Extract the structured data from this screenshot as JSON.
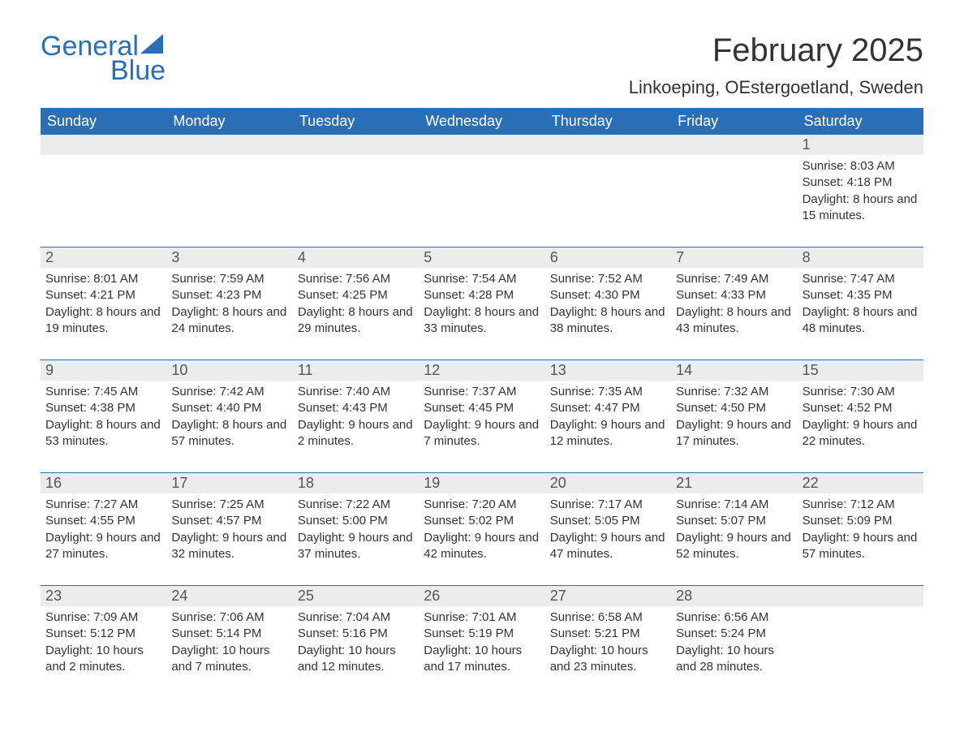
{
  "logo": {
    "word1": "General",
    "word2": "Blue",
    "color": "#2a6fb5"
  },
  "title": "February 2025",
  "location": "Linkoeping, OEstergoetland, Sweden",
  "weekdays": [
    "Sunday",
    "Monday",
    "Tuesday",
    "Wednesday",
    "Thursday",
    "Friday",
    "Saturday"
  ],
  "header_bg": "#2a6fb5",
  "header_fg": "#ffffff",
  "daynum_bg": "#ececec",
  "rule_color": "#2a6fb5",
  "text_color": "#333333",
  "background_color": "#ffffff",
  "font_family": "Arial",
  "title_fontsize": 40,
  "location_fontsize": 22,
  "weekday_fontsize": 18,
  "daynum_fontsize": 18,
  "detail_fontsize": 15,
  "weeks": [
    [
      null,
      null,
      null,
      null,
      null,
      null,
      {
        "n": "1",
        "sunrise": "8:03 AM",
        "sunset": "4:18 PM",
        "daylight": "8 hours and 15 minutes."
      }
    ],
    [
      {
        "n": "2",
        "sunrise": "8:01 AM",
        "sunset": "4:21 PM",
        "daylight": "8 hours and 19 minutes."
      },
      {
        "n": "3",
        "sunrise": "7:59 AM",
        "sunset": "4:23 PM",
        "daylight": "8 hours and 24 minutes."
      },
      {
        "n": "4",
        "sunrise": "7:56 AM",
        "sunset": "4:25 PM",
        "daylight": "8 hours and 29 minutes."
      },
      {
        "n": "5",
        "sunrise": "7:54 AM",
        "sunset": "4:28 PM",
        "daylight": "8 hours and 33 minutes."
      },
      {
        "n": "6",
        "sunrise": "7:52 AM",
        "sunset": "4:30 PM",
        "daylight": "8 hours and 38 minutes."
      },
      {
        "n": "7",
        "sunrise": "7:49 AM",
        "sunset": "4:33 PM",
        "daylight": "8 hours and 43 minutes."
      },
      {
        "n": "8",
        "sunrise": "7:47 AM",
        "sunset": "4:35 PM",
        "daylight": "8 hours and 48 minutes."
      }
    ],
    [
      {
        "n": "9",
        "sunrise": "7:45 AM",
        "sunset": "4:38 PM",
        "daylight": "8 hours and 53 minutes."
      },
      {
        "n": "10",
        "sunrise": "7:42 AM",
        "sunset": "4:40 PM",
        "daylight": "8 hours and 57 minutes."
      },
      {
        "n": "11",
        "sunrise": "7:40 AM",
        "sunset": "4:43 PM",
        "daylight": "9 hours and 2 minutes."
      },
      {
        "n": "12",
        "sunrise": "7:37 AM",
        "sunset": "4:45 PM",
        "daylight": "9 hours and 7 minutes."
      },
      {
        "n": "13",
        "sunrise": "7:35 AM",
        "sunset": "4:47 PM",
        "daylight": "9 hours and 12 minutes."
      },
      {
        "n": "14",
        "sunrise": "7:32 AM",
        "sunset": "4:50 PM",
        "daylight": "9 hours and 17 minutes."
      },
      {
        "n": "15",
        "sunrise": "7:30 AM",
        "sunset": "4:52 PM",
        "daylight": "9 hours and 22 minutes."
      }
    ],
    [
      {
        "n": "16",
        "sunrise": "7:27 AM",
        "sunset": "4:55 PM",
        "daylight": "9 hours and 27 minutes."
      },
      {
        "n": "17",
        "sunrise": "7:25 AM",
        "sunset": "4:57 PM",
        "daylight": "9 hours and 32 minutes."
      },
      {
        "n": "18",
        "sunrise": "7:22 AM",
        "sunset": "5:00 PM",
        "daylight": "9 hours and 37 minutes."
      },
      {
        "n": "19",
        "sunrise": "7:20 AM",
        "sunset": "5:02 PM",
        "daylight": "9 hours and 42 minutes."
      },
      {
        "n": "20",
        "sunrise": "7:17 AM",
        "sunset": "5:05 PM",
        "daylight": "9 hours and 47 minutes."
      },
      {
        "n": "21",
        "sunrise": "7:14 AM",
        "sunset": "5:07 PM",
        "daylight": "9 hours and 52 minutes."
      },
      {
        "n": "22",
        "sunrise": "7:12 AM",
        "sunset": "5:09 PM",
        "daylight": "9 hours and 57 minutes."
      }
    ],
    [
      {
        "n": "23",
        "sunrise": "7:09 AM",
        "sunset": "5:12 PM",
        "daylight": "10 hours and 2 minutes."
      },
      {
        "n": "24",
        "sunrise": "7:06 AM",
        "sunset": "5:14 PM",
        "daylight": "10 hours and 7 minutes."
      },
      {
        "n": "25",
        "sunrise": "7:04 AM",
        "sunset": "5:16 PM",
        "daylight": "10 hours and 12 minutes."
      },
      {
        "n": "26",
        "sunrise": "7:01 AM",
        "sunset": "5:19 PM",
        "daylight": "10 hours and 17 minutes."
      },
      {
        "n": "27",
        "sunrise": "6:58 AM",
        "sunset": "5:21 PM",
        "daylight": "10 hours and 23 minutes."
      },
      {
        "n": "28",
        "sunrise": "6:56 AM",
        "sunset": "5:24 PM",
        "daylight": "10 hours and 28 minutes."
      },
      null
    ]
  ],
  "labels": {
    "sunrise": "Sunrise:",
    "sunset": "Sunset:",
    "daylight": "Daylight:"
  }
}
